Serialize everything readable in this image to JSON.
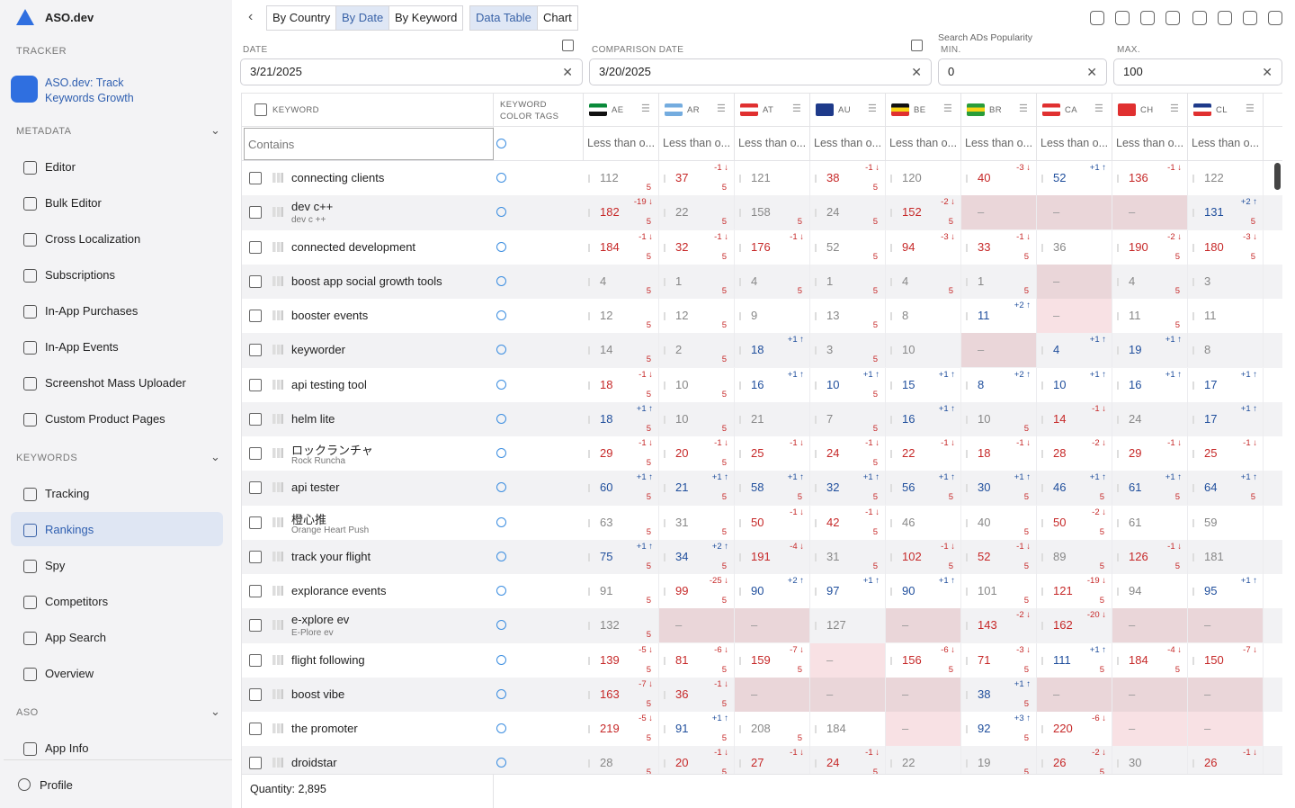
{
  "sidebar": {
    "brand": "ASO.dev",
    "tracker": "TRACKER",
    "app_name": "ASO.dev: Track Keywords Growth",
    "sections": [
      {
        "title": "METADATA",
        "items": [
          "Editor",
          "Bulk Editor",
          "Cross Localization",
          "Subscriptions",
          "In-App Purchases",
          "In-App Events",
          "Screenshot Mass Uploader",
          "Custom Product Pages"
        ]
      },
      {
        "title": "KEYWORDS",
        "items": [
          "Tracking",
          "Rankings",
          "Spy",
          "Competitors",
          "App Search",
          "Overview"
        ]
      },
      {
        "title": "ASO",
        "items": [
          "App Info"
        ]
      }
    ],
    "active_item": [
      1,
      1
    ],
    "profile": "Profile"
  },
  "toolbar": {
    "group_tabs": [
      "By Country",
      "By Date",
      "By Keyword"
    ],
    "active_group": 1,
    "view_tabs": [
      "Data Table",
      "Chart"
    ],
    "active_view": 0
  },
  "filters": {
    "date": {
      "label": "DATE",
      "value": "3/21/2025"
    },
    "comparison_date": {
      "label": "COMPARISON DATE",
      "value": "3/20/2025"
    },
    "popularity": {
      "label": "Search ADs Popularity",
      "min_label": "MIN.",
      "min": 0,
      "max_label": "MAX.",
      "max": 100
    }
  },
  "table": {
    "keyword_header": "KEYWORD",
    "tags_header": "KEYWORD COLOR TAGS",
    "countries": [
      "AE",
      "AR",
      "AT",
      "AU",
      "BE",
      "BR",
      "CA",
      "CH",
      "CL"
    ],
    "keyword_filter": "Contains",
    "country_filter": "Less than o...",
    "rows": [
      {
        "keyword": "connecting clients",
        "cells": [
          [
            112,
            null,
            5
          ],
          [
            37,
            "-1",
            5
          ],
          [
            121,
            null,
            null
          ],
          [
            38,
            "-1",
            5
          ],
          [
            120,
            null,
            null
          ],
          [
            40,
            "-3",
            null
          ],
          [
            52,
            "+1",
            null
          ],
          [
            136,
            "-1",
            null
          ],
          [
            122,
            null,
            null
          ]
        ]
      },
      {
        "keyword": "dev c++",
        "subtitle": "dev c ++",
        "cells": [
          [
            182,
            "-19",
            5
          ],
          [
            22,
            null,
            5
          ],
          [
            158,
            null,
            5
          ],
          [
            24,
            null,
            5
          ],
          [
            152,
            "-2",
            5
          ],
          [
            "–",
            null,
            null
          ],
          [
            "–",
            null,
            null
          ],
          [
            "–",
            null,
            null
          ],
          [
            131,
            "+2",
            5
          ]
        ]
      },
      {
        "keyword": "connected development",
        "cells": [
          [
            184,
            "-1",
            5
          ],
          [
            32,
            "-1",
            5
          ],
          [
            176,
            "-1",
            null
          ],
          [
            52,
            null,
            5
          ],
          [
            94,
            "-3",
            null
          ],
          [
            33,
            "-1",
            5
          ],
          [
            36,
            null,
            null
          ],
          [
            190,
            "-2",
            5
          ],
          [
            180,
            "-3",
            5
          ]
        ]
      },
      {
        "keyword": "boost app social growth tools",
        "cells": [
          [
            4,
            null,
            5
          ],
          [
            1,
            null,
            5
          ],
          [
            4,
            null,
            5
          ],
          [
            1,
            null,
            5
          ],
          [
            4,
            null,
            5
          ],
          [
            1,
            null,
            5
          ],
          [
            "–",
            null,
            null
          ],
          [
            4,
            null,
            5
          ],
          [
            3,
            null,
            null
          ]
        ]
      },
      {
        "keyword": "booster events",
        "cells": [
          [
            12,
            null,
            5
          ],
          [
            12,
            null,
            5
          ],
          [
            9,
            null,
            null
          ],
          [
            13,
            null,
            5
          ],
          [
            8,
            null,
            null
          ],
          [
            11,
            "+2",
            null
          ],
          [
            "–",
            null,
            null
          ],
          [
            11,
            null,
            5
          ],
          [
            11,
            null,
            null
          ]
        ]
      },
      {
        "keyword": "keyworder",
        "cells": [
          [
            14,
            null,
            5
          ],
          [
            2,
            null,
            5
          ],
          [
            18,
            "+1",
            null
          ],
          [
            3,
            null,
            5
          ],
          [
            10,
            null,
            null
          ],
          [
            "–",
            null,
            null
          ],
          [
            4,
            "+1",
            null
          ],
          [
            19,
            "+1",
            null
          ],
          [
            8,
            null,
            null
          ]
        ]
      },
      {
        "keyword": "api testing tool",
        "cells": [
          [
            18,
            "-1",
            5
          ],
          [
            10,
            null,
            5
          ],
          [
            16,
            "+1",
            null
          ],
          [
            10,
            "+1",
            5
          ],
          [
            15,
            "+1",
            null
          ],
          [
            8,
            "+2",
            null
          ],
          [
            10,
            "+1",
            null
          ],
          [
            16,
            "+1",
            null
          ],
          [
            17,
            "+1",
            null
          ]
        ]
      },
      {
        "keyword": "helm lite",
        "cells": [
          [
            18,
            "+1",
            5
          ],
          [
            10,
            null,
            5
          ],
          [
            21,
            null,
            null
          ],
          [
            7,
            null,
            5
          ],
          [
            16,
            "+1",
            null
          ],
          [
            10,
            null,
            5
          ],
          [
            14,
            "-1",
            null
          ],
          [
            24,
            null,
            null
          ],
          [
            17,
            "+1",
            null
          ]
        ]
      },
      {
        "keyword": "ロックランチャ",
        "subtitle": "Rock Runcha",
        "cells": [
          [
            29,
            "-1",
            5
          ],
          [
            20,
            "-1",
            5
          ],
          [
            25,
            "-1",
            null
          ],
          [
            24,
            "-1",
            5
          ],
          [
            22,
            "-1",
            null
          ],
          [
            18,
            "-1",
            null
          ],
          [
            28,
            "-2",
            null
          ],
          [
            29,
            "-1",
            null
          ],
          [
            25,
            "-1",
            null
          ]
        ]
      },
      {
        "keyword": "api tester",
        "cells": [
          [
            60,
            "+1",
            5
          ],
          [
            21,
            "+1",
            5
          ],
          [
            58,
            "+1",
            5
          ],
          [
            32,
            "+1",
            5
          ],
          [
            56,
            "+1",
            5
          ],
          [
            30,
            "+1",
            5
          ],
          [
            46,
            "+1",
            5
          ],
          [
            61,
            "+1",
            5
          ],
          [
            64,
            "+1",
            5
          ]
        ]
      },
      {
        "keyword": "橙心推",
        "subtitle": "Orange Heart Push",
        "cells": [
          [
            63,
            null,
            5
          ],
          [
            31,
            null,
            5
          ],
          [
            50,
            "-1",
            null
          ],
          [
            42,
            "-1",
            5
          ],
          [
            46,
            null,
            null
          ],
          [
            40,
            null,
            5
          ],
          [
            50,
            "-2",
            5
          ],
          [
            61,
            null,
            null
          ],
          [
            59,
            null,
            null
          ]
        ]
      },
      {
        "keyword": "track your flight",
        "cells": [
          [
            75,
            "+1",
            5
          ],
          [
            34,
            "+2",
            5
          ],
          [
            191,
            "-4",
            null
          ],
          [
            31,
            null,
            5
          ],
          [
            102,
            "-1",
            5
          ],
          [
            52,
            "-1",
            5
          ],
          [
            89,
            null,
            5
          ],
          [
            126,
            "-1",
            5
          ],
          [
            181,
            null,
            null
          ]
        ]
      },
      {
        "keyword": "explorance events",
        "cells": [
          [
            91,
            null,
            5
          ],
          [
            99,
            "-25",
            5
          ],
          [
            90,
            "+2",
            null
          ],
          [
            97,
            "+1",
            null
          ],
          [
            90,
            "+1",
            null
          ],
          [
            101,
            null,
            5
          ],
          [
            121,
            "-19",
            5
          ],
          [
            94,
            null,
            null
          ],
          [
            95,
            "+1",
            null
          ]
        ]
      },
      {
        "keyword": "e-xplore ev",
        "subtitle": "E-Plore ev",
        "cells": [
          [
            132,
            null,
            5
          ],
          [
            "–",
            null,
            null
          ],
          [
            "–",
            null,
            null
          ],
          [
            127,
            null,
            null
          ],
          [
            "–",
            null,
            null
          ],
          [
            143,
            "-2",
            null
          ],
          [
            162,
            "-20",
            null
          ],
          [
            "–",
            null,
            null
          ],
          [
            "–",
            null,
            null
          ]
        ]
      },
      {
        "keyword": "flight following",
        "cells": [
          [
            139,
            "-5",
            5
          ],
          [
            81,
            "-6",
            5
          ],
          [
            159,
            "-7",
            5
          ],
          [
            "–",
            null,
            null
          ],
          [
            156,
            "-6",
            5
          ],
          [
            71,
            "-3",
            5
          ],
          [
            111,
            "+1",
            5
          ],
          [
            184,
            "-4",
            5
          ],
          [
            150,
            "-7",
            null
          ]
        ]
      },
      {
        "keyword": "boost vibe",
        "cells": [
          [
            163,
            "-7",
            5
          ],
          [
            36,
            "-1",
            5
          ],
          [
            "–",
            null,
            null
          ],
          [
            "–",
            null,
            null
          ],
          [
            "–",
            null,
            null
          ],
          [
            38,
            "+1",
            5
          ],
          [
            "–",
            null,
            null
          ],
          [
            "–",
            null,
            null
          ],
          [
            "–",
            null,
            null
          ]
        ]
      },
      {
        "keyword": "the promoter",
        "cells": [
          [
            219,
            "-5",
            5
          ],
          [
            91,
            "+1",
            5
          ],
          [
            208,
            null,
            5
          ],
          [
            184,
            null,
            null
          ],
          [
            "–",
            null,
            null
          ],
          [
            92,
            "+3",
            5
          ],
          [
            220,
            "-6",
            null
          ],
          [
            "–",
            null,
            null
          ],
          [
            "–",
            null,
            null
          ]
        ]
      },
      {
        "keyword": "droidstar",
        "cells": [
          [
            28,
            null,
            5
          ],
          [
            20,
            "-1",
            5
          ],
          [
            27,
            "-1",
            null
          ],
          [
            24,
            "-1",
            5
          ],
          [
            22,
            null,
            null
          ],
          [
            19,
            null,
            5
          ],
          [
            26,
            "-2",
            5
          ],
          [
            30,
            null,
            null
          ],
          [
            26,
            "-1",
            null
          ]
        ]
      }
    ]
  },
  "footer": {
    "quantity": "Quantity: 2,895"
  }
}
